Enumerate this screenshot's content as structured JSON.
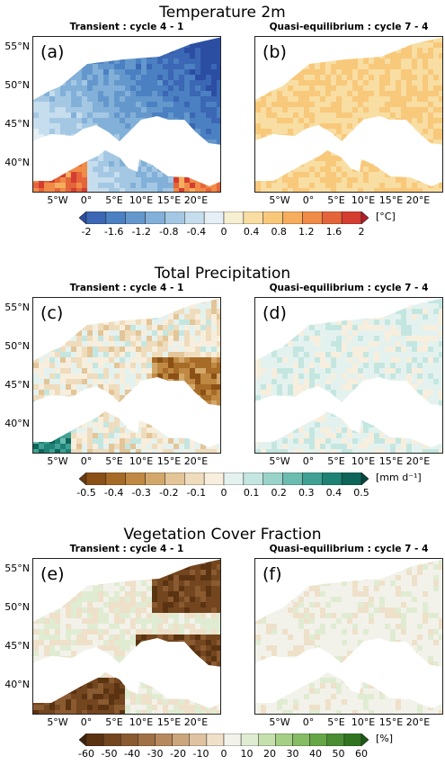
{
  "sections": [
    {
      "title": "Temperature 2m",
      "panels": [
        {
          "label": "(a)",
          "subtitle": "Transient : cycle 4 - 1",
          "lat_ticks": [
            "55°N",
            "50°N",
            "45°N",
            "40°N"
          ],
          "lon_ticks": [
            "5°W",
            "0°",
            "5°E",
            "10°E",
            "15°E",
            "20°E"
          ]
        },
        {
          "label": "(b)",
          "subtitle": "Quasi-equilibrium : cycle 7 - 4",
          "lat_ticks": [],
          "lon_ticks": [
            "5°W",
            "0°",
            "5°E",
            "10°E",
            "15°E",
            "20°E"
          ]
        }
      ],
      "colorbar": {
        "ticks": [
          "-2",
          "-1.6",
          "-1.2",
          "-0.8",
          "-0.4",
          "0",
          "0.4",
          "0.8",
          "1.2",
          "1.6",
          "2"
        ],
        "unit": "[°C]",
        "colors": [
          "#2b4ea3",
          "#3b67b4",
          "#4b80c2",
          "#6498cd",
          "#82b0d8",
          "#a4c8e3",
          "#c6dded",
          "#e6eff5",
          "#f6efd2",
          "#f8dea2",
          "#f8c87b",
          "#f6ad5d",
          "#f08b48",
          "#e5653a",
          "#d43d30",
          "#b51d2b"
        ]
      }
    },
    {
      "title": "Total Precipitation",
      "panels": [
        {
          "label": "(c)",
          "subtitle": "Transient : cycle 4 - 1",
          "lat_ticks": [
            "55°N",
            "50°N",
            "45°N",
            "40°N"
          ],
          "lon_ticks": [
            "5°W",
            "0°",
            "5°E",
            "10°E",
            "15°E",
            "20°E"
          ]
        },
        {
          "label": "(d)",
          "subtitle": "Quasi-equilibrium : cycle 7 - 4",
          "lat_ticks": [],
          "lon_ticks": [
            "5°W",
            "0°",
            "5°E",
            "10°E",
            "15°E",
            "20°E"
          ]
        }
      ],
      "colorbar": {
        "ticks": [
          "-0.5",
          "-0.4",
          "-0.3",
          "-0.2",
          "-0.1",
          "0",
          "0.1",
          "0.2",
          "0.3",
          "0.4",
          "0.5"
        ],
        "unit": "[mm d⁻¹]",
        "colors": [
          "#6b3a0b",
          "#8a5016",
          "#a66b26",
          "#bf8843",
          "#d3a76a",
          "#e3c597",
          "#efdcbd",
          "#f7eedd",
          "#e4f2ef",
          "#c4e6e1",
          "#99d3ca",
          "#6cbcb0",
          "#3fa093",
          "#1e8275",
          "#0c6558",
          "#03473c"
        ]
      }
    },
    {
      "title": "Vegetation Cover Fraction",
      "panels": [
        {
          "label": "(e)",
          "subtitle": "Transient : cycle 4 - 1",
          "lat_ticks": [
            "55°N",
            "50°N",
            "45°N",
            "40°N"
          ],
          "lon_ticks": [
            "5°W",
            "0°",
            "5°E",
            "10°E",
            "15°E",
            "20°E"
          ]
        },
        {
          "label": "(f)",
          "subtitle": "Quasi-equilibrium : cycle 7 - 4",
          "lat_ticks": [],
          "lon_ticks": [
            "5°W",
            "0°",
            "5°E",
            "10°E",
            "15°E",
            "20°E"
          ]
        }
      ],
      "colorbar": {
        "ticks": [
          "-60",
          "-50",
          "-40",
          "-30",
          "-20",
          "-10",
          "0",
          "10",
          "20",
          "30",
          "40",
          "50",
          "60"
        ],
        "unit": "[%]",
        "colors": [
          "#3f2208",
          "#5a3312",
          "#73461f",
          "#8a5a30",
          "#a07145",
          "#b78a5e",
          "#cba67d",
          "#dfc3a0",
          "#efe0c9",
          "#f2f2ea",
          "#e0ecd2",
          "#c5e0ac",
          "#a6cf86",
          "#86bc63",
          "#66a647",
          "#4a8d32",
          "#307420",
          "#1d5a14"
        ]
      }
    }
  ]
}
